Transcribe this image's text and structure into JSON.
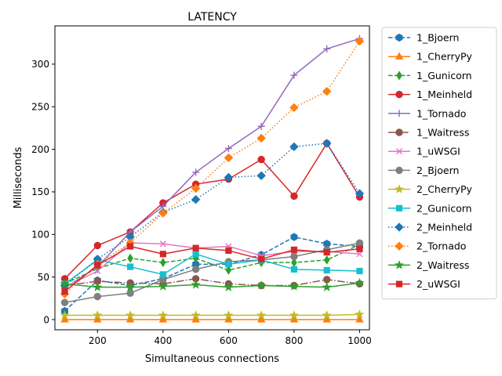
{
  "chart_data": {
    "type": "line",
    "title": "LATENCY",
    "xlabel": "Simultaneous connections",
    "ylabel": "Milliseconds",
    "xlim": [
      70,
      1030
    ],
    "ylim": [
      -12,
      345
    ],
    "xticks": [
      200,
      400,
      600,
      800,
      1000
    ],
    "yticks": [
      0,
      50,
      100,
      150,
      200,
      250,
      300
    ],
    "x": [
      100,
      200,
      300,
      400,
      500,
      600,
      700,
      800,
      900,
      1000
    ],
    "grid": false,
    "legend_position": "outside-right",
    "series": [
      {
        "name": "1_Bjoern",
        "color": "#1f77b4",
        "dash": "dashed",
        "marker": "hexagon",
        "values": [
          10,
          46,
          40,
          48,
          65,
          65,
          76,
          97,
          89,
          86
        ]
      },
      {
        "name": "1_CherryPy",
        "color": "#ff7f0e",
        "dash": "solid",
        "marker": "triangle",
        "values": [
          0,
          0,
          0,
          0,
          0,
          0,
          0,
          0,
          0,
          0
        ]
      },
      {
        "name": "1_Gunicorn",
        "color": "#2ca02c",
        "dash": "dashed",
        "marker": "diamond-thin",
        "values": [
          42,
          60,
          72,
          67,
          72,
          58,
          67,
          67,
          70,
          88
        ]
      },
      {
        "name": "1_Meinheld",
        "color": "#d62728",
        "dash": "solid",
        "marker": "circle",
        "values": [
          48,
          87,
          103,
          137,
          159,
          165,
          188,
          145,
          207,
          144
        ]
      },
      {
        "name": "1_Tornado",
        "color": "#9467bd",
        "dash": "solid",
        "marker": "plus",
        "values": [
          37,
          62,
          103,
          133,
          173,
          201,
          227,
          287,
          318,
          330
        ]
      },
      {
        "name": "1_Waitress",
        "color": "#8c564b",
        "dash": "dashdot",
        "marker": "circle",
        "values": [
          40,
          45,
          43,
          42,
          48,
          42,
          40,
          40,
          47,
          42
        ]
      },
      {
        "name": "1_uWSGI",
        "color": "#e377c2",
        "dash": "solid",
        "marker": "x",
        "values": [
          38,
          57,
          90,
          89,
          84,
          86,
          75,
          80,
          80,
          77
        ]
      },
      {
        "name": "2_Bjoern",
        "color": "#7f7f7f",
        "dash": "solid",
        "marker": "circle",
        "values": [
          20,
          27,
          31,
          47,
          59,
          68,
          70,
          74,
          82,
          90
        ]
      },
      {
        "name": "2_CherryPy",
        "color": "#bcbd22",
        "dash": "solid",
        "marker": "star",
        "values": [
          5,
          5,
          5,
          5,
          5,
          5,
          5,
          5,
          5,
          6
        ]
      },
      {
        "name": "2_Gunicorn",
        "color": "#17becf",
        "dash": "solid",
        "marker": "square",
        "values": [
          42,
          70,
          62,
          53,
          77,
          65,
          70,
          59,
          58,
          57
        ]
      },
      {
        "name": "2_Meinheld",
        "color": "#1f77b4",
        "dash": "dotted",
        "marker": "diamond",
        "values": [
          40,
          71,
          97,
          126,
          141,
          167,
          169,
          203,
          207,
          148
        ]
      },
      {
        "name": "2_Tornado",
        "color": "#ff7f0e",
        "dash": "dotted",
        "marker": "diamond",
        "values": [
          30,
          65,
          90,
          125,
          154,
          190,
          213,
          249,
          268,
          327
        ]
      },
      {
        "name": "2_Waitress",
        "color": "#2ca02c",
        "dash": "solid",
        "marker": "star",
        "values": [
          42,
          38,
          38,
          39,
          41,
          38,
          40,
          39,
          38,
          43
        ]
      },
      {
        "name": "2_uWSGI",
        "color": "#d62728",
        "dash": "solid",
        "marker": "square",
        "values": [
          33,
          64,
          86,
          77,
          84,
          81,
          71,
          82,
          79,
          83
        ]
      }
    ]
  }
}
